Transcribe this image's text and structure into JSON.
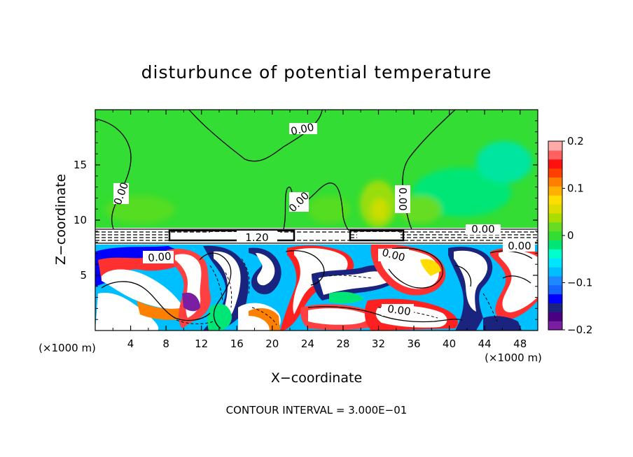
{
  "chart_data": {
    "type": "heatmap",
    "title": "disturbunce of potential temperature",
    "xlabel": "X−coordinate",
    "ylabel": "Z−coordinate",
    "x_unit_left": "(×1000 m)",
    "x_unit_right": "(×1000 m)",
    "footer": "CONTOUR INTERVAL = 3.000E−01",
    "xlim": [
      0,
      50
    ],
    "ylim": [
      0,
      20
    ],
    "x_ticks": [
      "4",
      "8",
      "12",
      "16",
      "20",
      "24",
      "28",
      "32",
      "36",
      "40",
      "44",
      "48"
    ],
    "x_tick_values": [
      4,
      8,
      12,
      16,
      20,
      24,
      28,
      32,
      36,
      40,
      44,
      48
    ],
    "y_ticks": [
      "5",
      "10",
      "15"
    ],
    "y_tick_values": [
      5,
      10,
      15
    ],
    "colorbar": {
      "range": [
        -0.2,
        0.2
      ],
      "tick_labels": [
        "0.2",
        "0.1",
        "0",
        "−0.1",
        "−0.2"
      ],
      "tick_values": [
        0.2,
        0.1,
        0,
        -0.1,
        -0.2
      ],
      "colors": [
        "#7b1fa2",
        "#4b0082",
        "#1a237e",
        "#0000ff",
        "#1565ff",
        "#1e88ff",
        "#00bfff",
        "#00e5ff",
        "#00ffcc",
        "#00e676",
        "#33dd33",
        "#66dd22",
        "#aadd00",
        "#dddd00",
        "#ffdd00",
        "#ffb000",
        "#ff8000",
        "#ff4000",
        "#ff1010",
        "#ff6060",
        "#ffaaaa"
      ]
    },
    "contour_labels": [
      {
        "text": "0.00",
        "x": 23.5,
        "z": 18.2
      },
      {
        "text": "0.00",
        "x": 3.0,
        "z": 12.6
      },
      {
        "text": "0.00",
        "x": 23.0,
        "z": 12.4
      },
      {
        "text": "0.00",
        "x": 35.0,
        "z": 12.0
      },
      {
        "text": "0.00",
        "x": 7.0,
        "z": 6.5
      },
      {
        "text": "0.00",
        "x": 34.0,
        "z": 6.6
      },
      {
        "text": "0.00",
        "x": 47.0,
        "z": 7.7
      },
      {
        "text": "0.00",
        "x": 43.0,
        "z": 9.1
      },
      {
        "text": "0.00",
        "x": 34.5,
        "z": 1.5
      },
      {
        "text": "1.20",
        "x": 18.2,
        "z": 8.5
      }
    ]
  }
}
